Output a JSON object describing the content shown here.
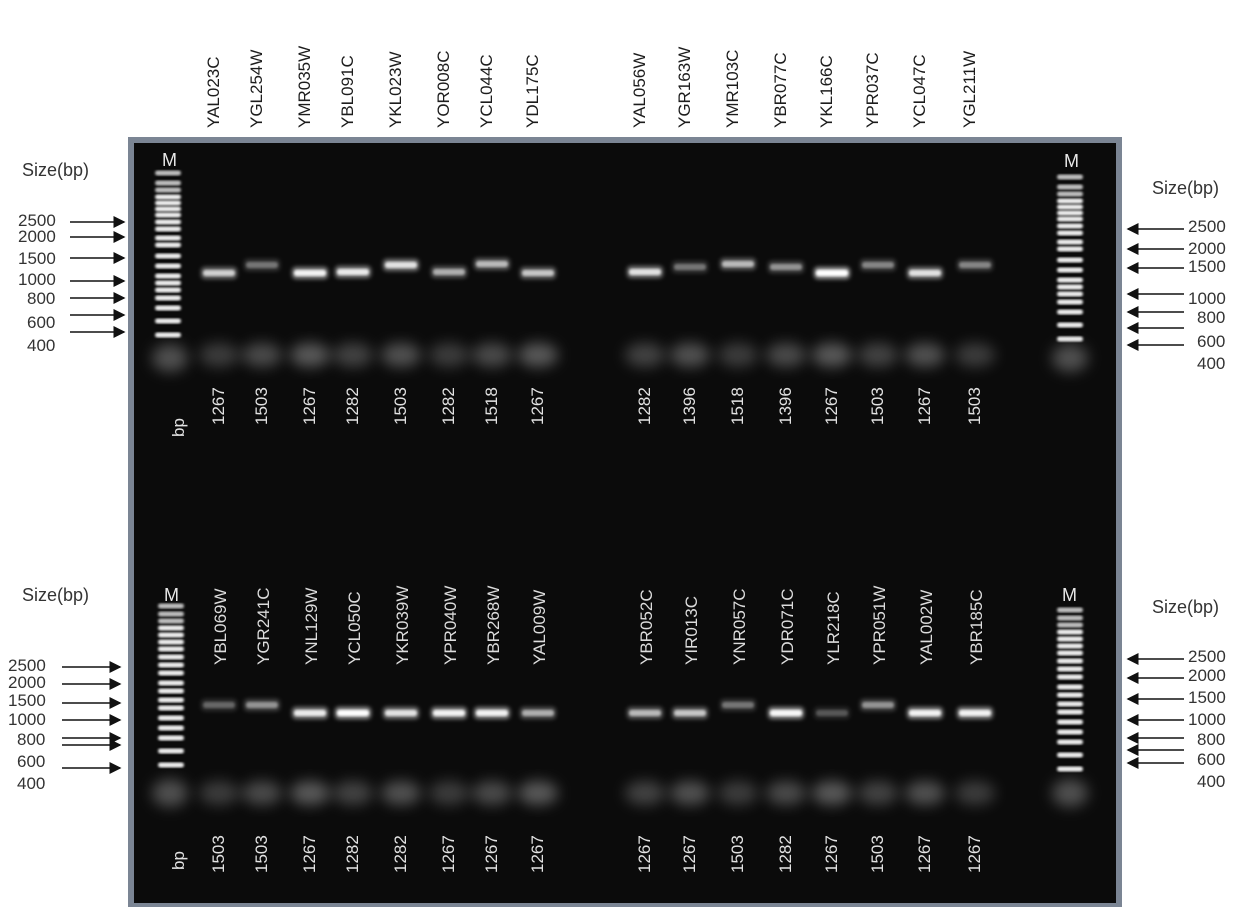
{
  "colors": {
    "gel": "#0b0b0b",
    "frame": "#7b8594",
    "band": "#ffffff"
  },
  "top_panel": {
    "lane_names_a": [
      "YAL023C",
      "YGL254W",
      "YMR035W",
      "YBL091C",
      "YKL023W",
      "YOR008C",
      "YCL044C",
      "YDL175C"
    ],
    "lane_names_b": [
      "YAL056W",
      "YGR163W",
      "YMR103C",
      "YBR077C",
      "YKL166C",
      "YPR037C",
      "YCL047C",
      "YGL211W"
    ],
    "marker_label": "M",
    "bp_label": "bp",
    "sizes_a": [
      "1267",
      "1503",
      "1267",
      "1282",
      "1503",
      "1282",
      "1518",
      "1267"
    ],
    "sizes_b": [
      "1282",
      "1396",
      "1518",
      "1396",
      "1267",
      "1503",
      "1267",
      "1503"
    ],
    "size_title": "Size(bp)",
    "left_ticks": [
      "2500",
      "2000",
      "1500",
      "1000",
      "800",
      "600",
      "400"
    ],
    "right_ticks": [
      "2500",
      "2000",
      "1500",
      "1000",
      "800",
      "600",
      "400"
    ],
    "band_intensity_a": [
      0.65,
      0.3,
      0.85,
      0.8,
      0.75,
      0.5,
      0.55,
      0.6
    ],
    "band_intensity_b": [
      0.75,
      0.3,
      0.55,
      0.4,
      1.0,
      0.35,
      0.75,
      0.35
    ]
  },
  "bottom_panel": {
    "lane_names_a": [
      "YBL069W",
      "YGR241C",
      "YNL129W",
      "YCL050C",
      "YKR039W",
      "YPR040W",
      "YBR268W",
      "YAL009W"
    ],
    "lane_names_b": [
      "YBR052C",
      "YIR013C",
      "YNR057C",
      "YDR071C",
      "YLR218C",
      "YPR051W",
      "YAL002W",
      "YBR185C"
    ],
    "marker_label": "M",
    "bp_label": "bp",
    "sizes_a": [
      "1503",
      "1503",
      "1267",
      "1282",
      "1282",
      "1267",
      "1267",
      "1267"
    ],
    "sizes_b": [
      "1267",
      "1267",
      "1503",
      "1282",
      "1267",
      "1503",
      "1267",
      "1267"
    ],
    "size_title": "Size(bp)",
    "left_ticks": [
      "2500",
      "2000",
      "1500",
      "1000",
      "800",
      "600",
      "400"
    ],
    "right_ticks": [
      "2500",
      "2000",
      "1500",
      "1000",
      "800",
      "600",
      "400"
    ],
    "band_intensity_a": [
      0.25,
      0.4,
      0.8,
      0.95,
      0.75,
      0.85,
      0.85,
      0.5
    ],
    "band_intensity_b": [
      0.55,
      0.6,
      0.3,
      0.9,
      0.2,
      0.4,
      0.85,
      0.85
    ]
  }
}
